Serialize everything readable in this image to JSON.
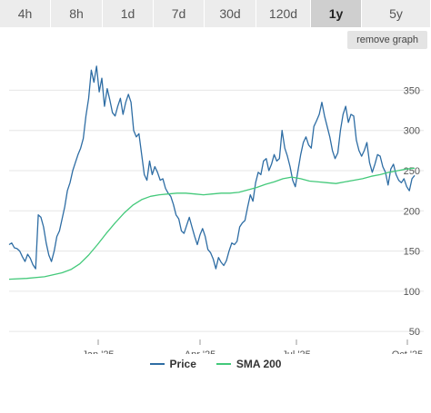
{
  "tabs": [
    {
      "label": "4h",
      "active": false
    },
    {
      "label": "8h",
      "active": false
    },
    {
      "label": "1d",
      "active": false
    },
    {
      "label": "7d",
      "active": false
    },
    {
      "label": "30d",
      "active": false
    },
    {
      "label": "120d",
      "active": false
    },
    {
      "label": "1y",
      "active": true
    },
    {
      "label": "5y",
      "active": false
    }
  ],
  "remove_graph_label": "remove graph",
  "colors": {
    "price": "#2e6da4",
    "sma": "#43c97a",
    "grid": "#e6e6e6",
    "tick": "#555555"
  },
  "legend": {
    "price_label": "Price",
    "sma_label": "SMA 200"
  },
  "chart_data": {
    "type": "line",
    "title": "",
    "xlabel": "",
    "ylabel": "",
    "x_ticks": [
      "Jan '25",
      "Apr '25",
      "Jul '25",
      "Oct '25"
    ],
    "y_ticks": [
      50,
      100,
      150,
      200,
      250,
      300,
      350
    ],
    "ylim": [
      40,
      390
    ],
    "y_axis_side": "right",
    "grid": true,
    "legend_position": "bottom-center",
    "series": [
      {
        "name": "Price",
        "values": [
          [
            0,
            158
          ],
          [
            3,
            160
          ],
          [
            6,
            154
          ],
          [
            9,
            153
          ],
          [
            12,
            150
          ],
          [
            15,
            143
          ],
          [
            18,
            137
          ],
          [
            21,
            146
          ],
          [
            24,
            141
          ],
          [
            27,
            133
          ],
          [
            30,
            128
          ],
          [
            33,
            195
          ],
          [
            36,
            192
          ],
          [
            39,
            180
          ],
          [
            42,
            160
          ],
          [
            45,
            145
          ],
          [
            48,
            137
          ],
          [
            51,
            150
          ],
          [
            54,
            168
          ],
          [
            57,
            175
          ],
          [
            60,
            190
          ],
          [
            63,
            205
          ],
          [
            66,
            225
          ],
          [
            69,
            235
          ],
          [
            72,
            250
          ],
          [
            75,
            260
          ],
          [
            78,
            270
          ],
          [
            81,
            278
          ],
          [
            84,
            290
          ],
          [
            87,
            318
          ],
          [
            90,
            340
          ],
          [
            93,
            375
          ],
          [
            96,
            360
          ],
          [
            99,
            380
          ],
          [
            102,
            348
          ],
          [
            105,
            365
          ],
          [
            108,
            330
          ],
          [
            111,
            352
          ],
          [
            114,
            338
          ],
          [
            117,
            322
          ],
          [
            120,
            318
          ],
          [
            123,
            330
          ],
          [
            126,
            340
          ],
          [
            129,
            320
          ],
          [
            132,
            335
          ],
          [
            135,
            345
          ],
          [
            138,
            335
          ],
          [
            141,
            300
          ],
          [
            144,
            292
          ],
          [
            147,
            296
          ],
          [
            150,
            270
          ],
          [
            153,
            245
          ],
          [
            156,
            238
          ],
          [
            159,
            262
          ],
          [
            162,
            245
          ],
          [
            165,
            255
          ],
          [
            168,
            248
          ],
          [
            171,
            238
          ],
          [
            174,
            240
          ],
          [
            177,
            228
          ],
          [
            180,
            222
          ],
          [
            183,
            218
          ],
          [
            186,
            208
          ],
          [
            189,
            195
          ],
          [
            192,
            190
          ],
          [
            195,
            175
          ],
          [
            198,
            172
          ],
          [
            201,
            182
          ],
          [
            204,
            192
          ],
          [
            207,
            180
          ],
          [
            210,
            168
          ],
          [
            213,
            158
          ],
          [
            216,
            170
          ],
          [
            219,
            178
          ],
          [
            222,
            168
          ],
          [
            225,
            152
          ],
          [
            228,
            148
          ],
          [
            231,
            140
          ],
          [
            234,
            128
          ],
          [
            237,
            142
          ],
          [
            240,
            136
          ],
          [
            243,
            132
          ],
          [
            246,
            138
          ],
          [
            249,
            150
          ],
          [
            252,
            160
          ],
          [
            255,
            158
          ],
          [
            258,
            162
          ],
          [
            261,
            180
          ],
          [
            264,
            185
          ],
          [
            267,
            188
          ],
          [
            270,
            205
          ],
          [
            273,
            220
          ],
          [
            276,
            212
          ],
          [
            279,
            235
          ],
          [
            282,
            248
          ],
          [
            285,
            245
          ],
          [
            288,
            262
          ],
          [
            291,
            265
          ],
          [
            294,
            250
          ],
          [
            297,
            258
          ],
          [
            300,
            270
          ],
          [
            303,
            262
          ],
          [
            306,
            265
          ],
          [
            309,
            300
          ],
          [
            312,
            278
          ],
          [
            315,
            268
          ],
          [
            318,
            255
          ],
          [
            321,
            238
          ],
          [
            324,
            230
          ],
          [
            327,
            250
          ],
          [
            330,
            270
          ],
          [
            333,
            285
          ],
          [
            336,
            292
          ],
          [
            339,
            282
          ],
          [
            342,
            278
          ],
          [
            345,
            305
          ],
          [
            348,
            312
          ],
          [
            351,
            320
          ],
          [
            354,
            335
          ],
          [
            357,
            318
          ],
          [
            360,
            305
          ],
          [
            363,
            292
          ],
          [
            366,
            275
          ],
          [
            369,
            265
          ],
          [
            372,
            272
          ],
          [
            375,
            300
          ],
          [
            378,
            320
          ],
          [
            381,
            330
          ],
          [
            384,
            310
          ],
          [
            387,
            320
          ],
          [
            390,
            318
          ],
          [
            393,
            288
          ],
          [
            396,
            275
          ],
          [
            399,
            268
          ],
          [
            402,
            275
          ],
          [
            405,
            285
          ],
          [
            408,
            260
          ],
          [
            411,
            248
          ],
          [
            414,
            258
          ],
          [
            417,
            270
          ],
          [
            420,
            268
          ],
          [
            423,
            255
          ],
          [
            426,
            248
          ],
          [
            429,
            232
          ],
          [
            432,
            252
          ],
          [
            435,
            258
          ],
          [
            438,
            245
          ],
          [
            441,
            238
          ],
          [
            444,
            235
          ],
          [
            447,
            240
          ],
          [
            450,
            230
          ],
          [
            453,
            225
          ],
          [
            456,
            240
          ],
          [
            459,
            244
          ]
        ]
      },
      {
        "name": "SMA 200",
        "values": [
          [
            0,
            115
          ],
          [
            20,
            116
          ],
          [
            40,
            118
          ],
          [
            60,
            123
          ],
          [
            70,
            127
          ],
          [
            80,
            134
          ],
          [
            90,
            145
          ],
          [
            100,
            158
          ],
          [
            110,
            172
          ],
          [
            120,
            185
          ],
          [
            130,
            197
          ],
          [
            140,
            207
          ],
          [
            150,
            214
          ],
          [
            160,
            218
          ],
          [
            170,
            220
          ],
          [
            180,
            221
          ],
          [
            190,
            222
          ],
          [
            200,
            222
          ],
          [
            210,
            221
          ],
          [
            220,
            220
          ],
          [
            230,
            221
          ],
          [
            240,
            222
          ],
          [
            250,
            222
          ],
          [
            260,
            223
          ],
          [
            270,
            226
          ],
          [
            280,
            229
          ],
          [
            290,
            233
          ],
          [
            300,
            236
          ],
          [
            310,
            240
          ],
          [
            320,
            242
          ],
          [
            330,
            240
          ],
          [
            340,
            237
          ],
          [
            350,
            236
          ],
          [
            360,
            235
          ],
          [
            370,
            234
          ],
          [
            380,
            236
          ],
          [
            390,
            238
          ],
          [
            400,
            240
          ],
          [
            410,
            243
          ],
          [
            420,
            245
          ],
          [
            430,
            248
          ],
          [
            440,
            250
          ],
          [
            450,
            252
          ],
          [
            459,
            253
          ]
        ]
      }
    ]
  }
}
